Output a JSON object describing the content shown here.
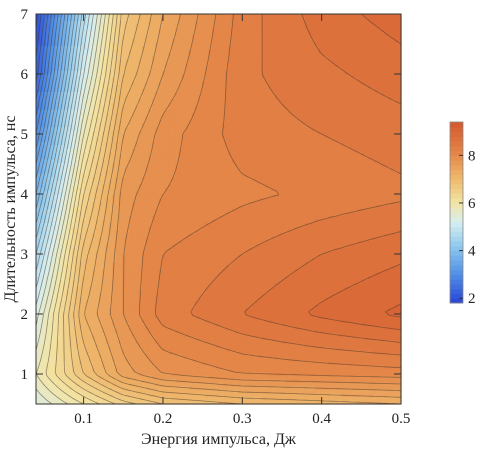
{
  "chart_data": {
    "type": "heatmap",
    "subtype": "filled-contour",
    "title": "",
    "xlabel": "Энергия импульса, Дж",
    "ylabel": "Длительность импульса, нс",
    "xlim": [
      0.04,
      0.5
    ],
    "ylim": [
      0.5,
      7
    ],
    "x_ticks": [
      {
        "value": 0.1,
        "label": "0.1"
      },
      {
        "value": 0.2,
        "label": "0.2"
      },
      {
        "value": 0.3,
        "label": "0.3"
      },
      {
        "value": 0.4,
        "label": "0.4"
      },
      {
        "value": 0.5,
        "label": "0.5"
      }
    ],
    "y_ticks": [
      {
        "value": 1,
        "label": "1"
      },
      {
        "value": 2,
        "label": "2"
      },
      {
        "value": 3,
        "label": "3"
      },
      {
        "value": 4,
        "label": "4"
      },
      {
        "value": 5,
        "label": "5"
      },
      {
        "value": 6,
        "label": "6"
      },
      {
        "value": 7,
        "label": "7"
      }
    ],
    "colorbar": {
      "range": [
        1.8,
        9.4
      ],
      "ticks": [
        {
          "value": 2,
          "label": "2"
        },
        {
          "value": 4,
          "label": "4"
        },
        {
          "value": 6,
          "label": "6"
        },
        {
          "value": 8,
          "label": "8"
        }
      ],
      "color_stops": [
        {
          "value": 1.8,
          "color": "#2a44d6"
        },
        {
          "value": 3.0,
          "color": "#4f8ee6"
        },
        {
          "value": 4.2,
          "color": "#8fc9ee"
        },
        {
          "value": 5.2,
          "color": "#d6eef0"
        },
        {
          "value": 6.0,
          "color": "#f3e5a6"
        },
        {
          "value": 7.0,
          "color": "#efba6e"
        },
        {
          "value": 8.0,
          "color": "#e58a4a"
        },
        {
          "value": 9.4,
          "color": "#d4582e"
        }
      ]
    },
    "surface_samples": {
      "x": [
        0.04,
        0.1,
        0.15,
        0.2,
        0.3,
        0.4,
        0.5
      ],
      "y": [
        0.5,
        1,
        2,
        3,
        4,
        5,
        6,
        7
      ],
      "z": [
        [
          5.4,
          6.0,
          6.5,
          6.8,
          7.0,
          7.1,
          7.2
        ],
        [
          5.8,
          6.8,
          7.5,
          7.8,
          8.0,
          8.05,
          8.1
        ],
        [
          5.3,
          7.2,
          7.8,
          8.3,
          8.6,
          8.85,
          9.05
        ],
        [
          4.6,
          6.9,
          7.8,
          8.2,
          8.4,
          8.6,
          8.75
        ],
        [
          3.8,
          6.4,
          7.7,
          8.0,
          8.15,
          8.25,
          8.35
        ],
        [
          3.0,
          5.8,
          7.4,
          7.9,
          8.3,
          8.4,
          8.5
        ],
        [
          2.3,
          5.2,
          7.0,
          7.6,
          8.35,
          8.55,
          8.7
        ],
        [
          1.9,
          4.7,
          6.7,
          7.4,
          8.3,
          8.7,
          8.9
        ]
      ]
    },
    "contour_step": 0.2,
    "grid": false,
    "legend": "colorbar right"
  }
}
